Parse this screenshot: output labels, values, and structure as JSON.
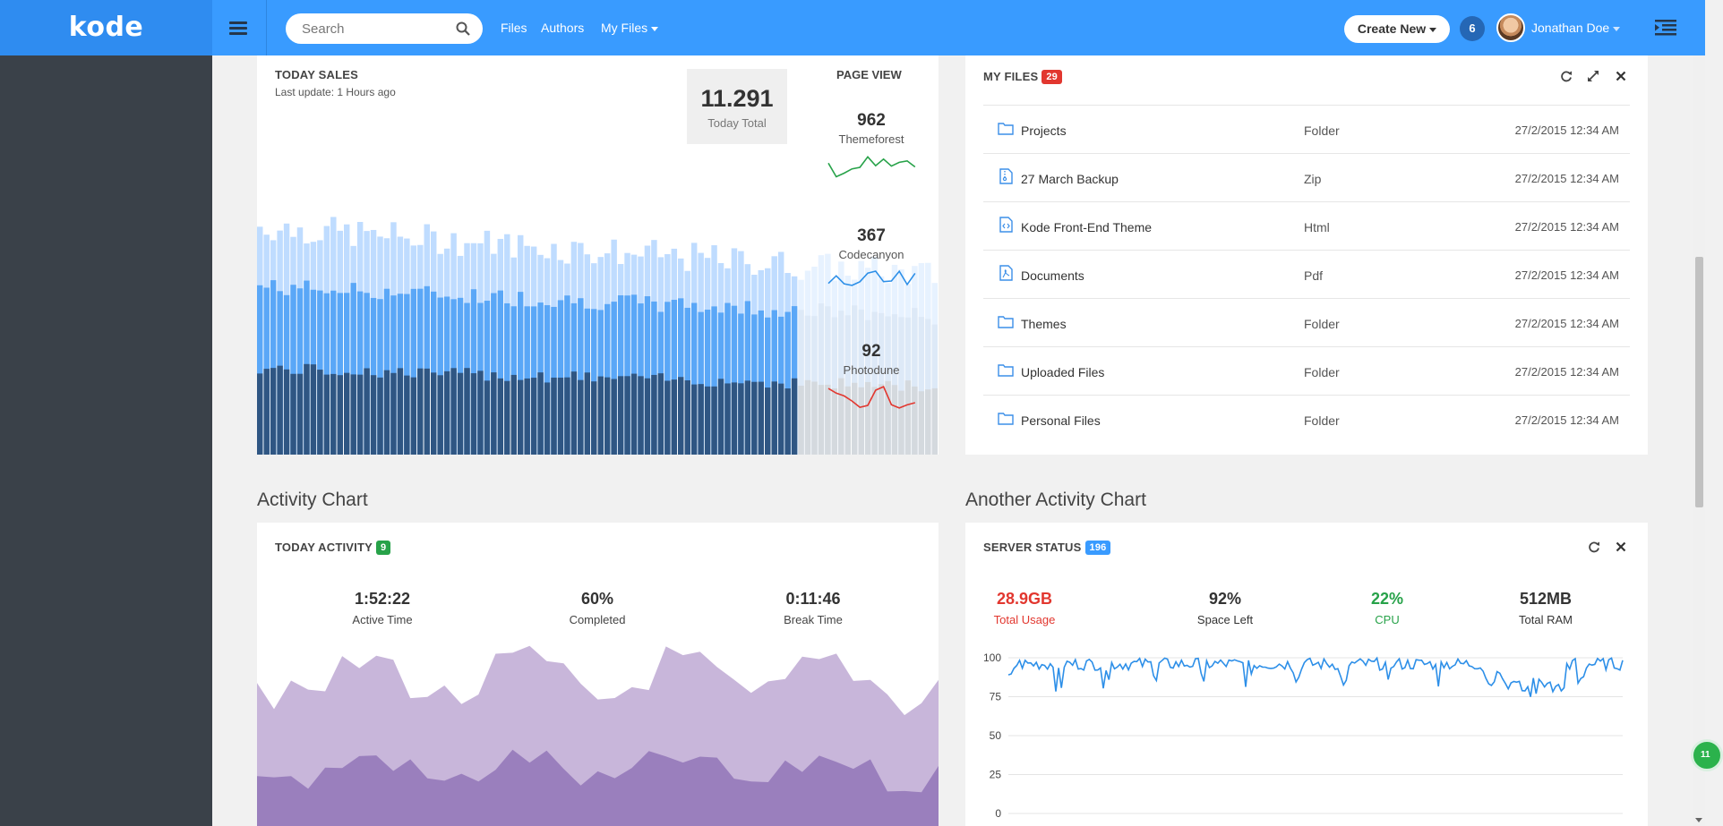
{
  "header": {
    "brand": "kode",
    "search_placeholder": "Search",
    "nav": [
      "Files",
      "Authors",
      "My Files"
    ],
    "create_label": "Create New",
    "notif_count": "6",
    "user_name": "Jonathan Doe"
  },
  "sales": {
    "title": "TODAY SALES",
    "last_update": "Last update: 1 Hours ago",
    "total_value": "11.291",
    "total_label": "Today Total",
    "page_view_title": "PAGE VIEW",
    "page_views": [
      {
        "value": "962",
        "label": "Themeforest",
        "color": "#27a249"
      },
      {
        "value": "367",
        "label": "Codecanyon",
        "color": "#2d8fe8"
      },
      {
        "value": "92",
        "label": "Photodune",
        "color": "#e2372f"
      }
    ],
    "bar_colors": {
      "light": "#bfdcff",
      "mid": "#5aa7f7",
      "dark": "#2f5683",
      "faded_light": "#e7f2ff",
      "faded_mid": "#dde9f7",
      "faded_dark": "#d4d9de"
    }
  },
  "files": {
    "title": "MY FILES",
    "count": "29",
    "rows": [
      {
        "name": "Projects",
        "type": "Folder",
        "date": "27/2/2015 12:34 AM",
        "icon": "folder-icon"
      },
      {
        "name": "27 March Backup",
        "type": "Zip",
        "date": "27/2/2015 12:34 AM",
        "icon": "zip-file-icon"
      },
      {
        "name": "Kode Front-End Theme",
        "type": "Html",
        "date": "27/2/2015 12:34 AM",
        "icon": "code-file-icon"
      },
      {
        "name": "Documents",
        "type": "Pdf",
        "date": "27/2/2015 12:34 AM",
        "icon": "pdf-file-icon"
      },
      {
        "name": "Themes",
        "type": "Folder",
        "date": "27/2/2015 12:34 AM",
        "icon": "folder-icon"
      },
      {
        "name": "Uploaded Files",
        "type": "Folder",
        "date": "27/2/2015 12:34 AM",
        "icon": "folder-icon"
      },
      {
        "name": "Personal Files",
        "type": "Folder",
        "date": "27/2/2015 12:34 AM",
        "icon": "folder-icon"
      }
    ]
  },
  "activity": {
    "section_title": "Activity Chart",
    "title": "TODAY ACTIVITY",
    "count": "9",
    "stats": [
      {
        "value": "1:52:22",
        "label": "Active Time"
      },
      {
        "value": "60%",
        "label": "Completed"
      },
      {
        "value": "0:11:46",
        "label": "Break Time"
      }
    ],
    "colors": {
      "light": "#c8b6da",
      "dark": "#9a7fbd"
    }
  },
  "server": {
    "section_title": "Another Activity Chart",
    "title": "SERVER STATUS",
    "count": "196",
    "stats": [
      {
        "value": "28.9GB",
        "label": "Total Usage",
        "color": "#e2372f"
      },
      {
        "value": "92%",
        "label": "Space Left",
        "color": "#333333"
      },
      {
        "value": "22%",
        "label": "CPU",
        "color": "#27a249"
      },
      {
        "value": "512MB",
        "label": "Total RAM",
        "color": "#333333"
      }
    ],
    "y_ticks": [
      "100",
      "75",
      "50",
      "25",
      "0"
    ],
    "line_color": "#2d8fe8"
  },
  "badge_colors": {
    "files": "#e2372f",
    "activity": "#27a249",
    "server": "#399bff"
  },
  "float_label": "11"
}
